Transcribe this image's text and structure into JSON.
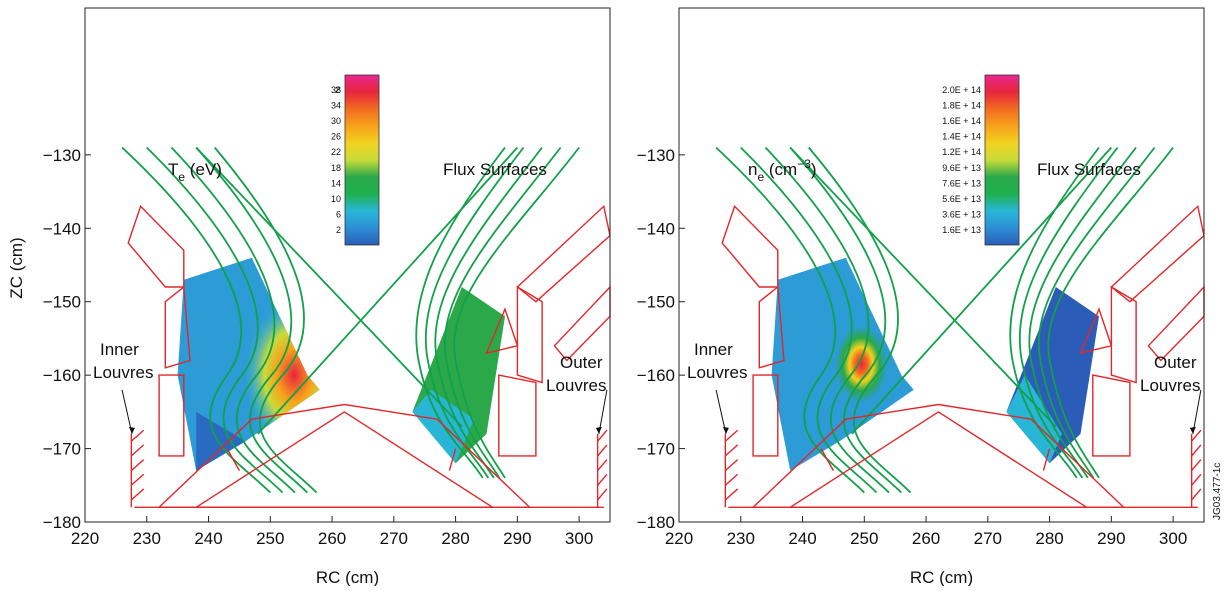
{
  "chart_data": [
    {
      "type": "heatmap",
      "title": "T",
      "title_sub": "e",
      "title_unit": " (eV)",
      "annotation": "Flux Surfaces",
      "label_inner": [
        "Inner",
        "Louvres"
      ],
      "label_outer": [
        "Outer",
        "Louvres"
      ],
      "xlabel": "RC (cm)",
      "ylabel": "ZC (cm)",
      "xlim": [
        220,
        305
      ],
      "ylim": [
        -180,
        -110
      ],
      "xticks": [
        "220",
        "230",
        "240",
        "250",
        "260",
        "270",
        "280",
        "290",
        "300"
      ],
      "yticks": [
        "−130",
        "−140",
        "−150",
        "−160",
        "−170",
        "−180"
      ],
      "colorbar": {
        "labels": [
          "38",
          "34",
          "30",
          "26",
          "22",
          "18",
          "14",
          "10",
          "6",
          "2"
        ],
        "extra_label": "2",
        "colors": [
          "#e8268f",
          "#e8263c",
          "#f26b21",
          "#f7a21b",
          "#f2d21f",
          "#c8db3a",
          "#2aa84a",
          "#1fb04f",
          "#29b6d6",
          "#2d8fd6",
          "#2a5cb8"
        ]
      },
      "regions": [
        {
          "name": "inner-patch",
          "value": 8,
          "peak": 30
        },
        {
          "name": "outer-patch",
          "value": 14
        }
      ]
    },
    {
      "type": "heatmap",
      "title": "n",
      "title_sub": "e",
      "title_unit": " (cm",
      "title_exp": "−3",
      "title_close": ")",
      "annotation": "Flux Surfaces",
      "label_inner": [
        "Inner",
        "Louvres"
      ],
      "label_outer": [
        "Outer",
        "Louvres"
      ],
      "xlabel": "RC (cm)",
      "ylabel": "",
      "xlim": [
        220,
        305
      ],
      "ylim": [
        -180,
        -110
      ],
      "xticks": [
        "220",
        "230",
        "240",
        "250",
        "260",
        "270",
        "280",
        "290",
        "300"
      ],
      "yticks": [
        "−130",
        "−140",
        "−150",
        "−160",
        "−170",
        "−180"
      ],
      "colorbar": {
        "labels": [
          "2.0E + 14",
          "1.8E + 14",
          "1.6E + 14",
          "1.4E + 14",
          "1.2E + 14",
          "9.6E + 13",
          "7.6E + 13",
          "5.6E + 13",
          "3.6E + 13",
          "1.6E + 13"
        ],
        "colors": [
          "#e8268f",
          "#e8263c",
          "#f26b21",
          "#f7a21b",
          "#f2d21f",
          "#c8db3a",
          "#2aa84a",
          "#1fb04f",
          "#29b6d6",
          "#2d8fd6",
          "#2a5cb8"
        ]
      },
      "regions": [
        {
          "name": "inner-patch",
          "value": 50000000000000.0,
          "peak": 200000000000000.0
        },
        {
          "name": "outer-patch",
          "value": 20000000000000.0
        }
      ]
    }
  ],
  "side_code": "JG03.477-1c"
}
